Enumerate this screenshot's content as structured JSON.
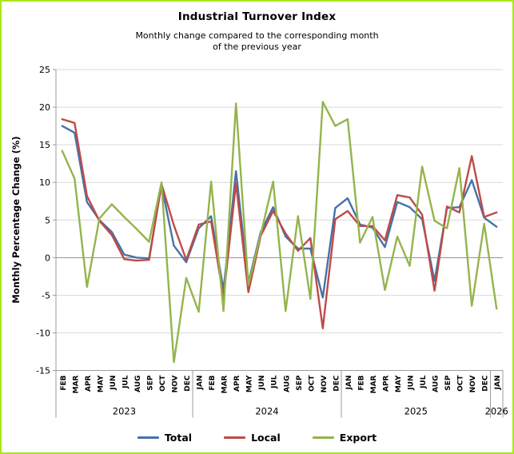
{
  "chart_data": {
    "type": "line",
    "title": "Industrial Turnover Index",
    "subtitle": "Monthly change compared to the corresponding month of the previous year",
    "subtitle_lines": [
      "Monthly change compared to the corresponding month",
      "of the previous year"
    ],
    "ylabel": "Monthly Percentage Change (%)",
    "xlabel": "",
    "ylim": [
      -15,
      25
    ],
    "yticks": [
      25,
      20,
      15,
      10,
      5,
      0,
      -5,
      -10,
      -15
    ],
    "grid": true,
    "legend_position": "bottom",
    "categories": [
      "FEB",
      "MAR",
      "APR",
      "MAY",
      "JUN",
      "JUL",
      "AUG",
      "SEP",
      "OCT",
      "NOV",
      "DEC",
      "JAN",
      "FEB",
      "MAR",
      "APR",
      "MAY",
      "JUN",
      "JUL",
      "AUG",
      "SEP",
      "OCT",
      "NOV",
      "DEC",
      "JAN",
      "FEB",
      "MAR",
      "APR",
      "MAY",
      "JUN",
      "JUL",
      "AUG",
      "SEP",
      "OCT",
      "NOV",
      "DEC",
      "JAN"
    ],
    "year_groups": [
      {
        "label": "2023",
        "start": 0,
        "end": 10
      },
      {
        "label": "2024",
        "start": 11,
        "end": 22
      },
      {
        "label": "2025",
        "start": 23,
        "end": 34
      },
      {
        "label": "2026",
        "start": 35,
        "end": 35
      }
    ],
    "series": [
      {
        "name": "Total",
        "color": "#4672a8",
        "values": [
          17.5,
          16.6,
          7.4,
          5.0,
          3.4,
          0.4,
          0.0,
          -0.1,
          9.6,
          1.6,
          -0.6,
          3.9,
          5.5,
          -4.3,
          11.5,
          -3.3,
          3.4,
          6.7,
          2.8,
          1.2,
          1.2,
          -5.3,
          6.6,
          7.9,
          4.4,
          4.0,
          1.4,
          7.4,
          6.7,
          5.1,
          -3.1,
          6.6,
          6.7,
          10.3,
          5.3,
          4.1
        ]
      },
      {
        "name": "Local",
        "color": "#be4b46",
        "values": [
          18.4,
          17.9,
          8.2,
          4.9,
          3.0,
          -0.2,
          -0.4,
          -0.3,
          9.8,
          4.3,
          -0.3,
          4.4,
          4.8,
          -5.3,
          9.9,
          -4.6,
          2.9,
          6.2,
          3.2,
          0.9,
          2.6,
          -9.4,
          5.1,
          6.2,
          4.2,
          4.2,
          2.3,
          8.3,
          8.0,
          5.7,
          -4.4,
          6.8,
          6.0,
          13.5,
          5.4,
          6.0
        ]
      },
      {
        "name": "Export",
        "color": "#94b44d",
        "values": [
          14.2,
          10.5,
          -3.9,
          5.2,
          7.1,
          5.4,
          3.8,
          2.1,
          10.0,
          -13.9,
          -2.7,
          -7.2,
          10.1,
          -7.1,
          20.5,
          -3.6,
          3.1,
          10.1,
          -7.1,
          5.5,
          -5.5,
          20.7,
          17.5,
          18.4,
          2.0,
          5.4,
          -4.3,
          2.8,
          -1.1,
          12.1,
          4.9,
          3.9,
          11.9,
          -6.4,
          4.5,
          -6.8
        ]
      }
    ]
  },
  "style": {
    "frame_border_color": "#a9e613",
    "background_color": "#ffffff",
    "gridline_color": "#d9d9d9",
    "zero_line_color": "#8c8c8c",
    "axis_color": "#9b9b9b",
    "text_color": "#000000"
  }
}
